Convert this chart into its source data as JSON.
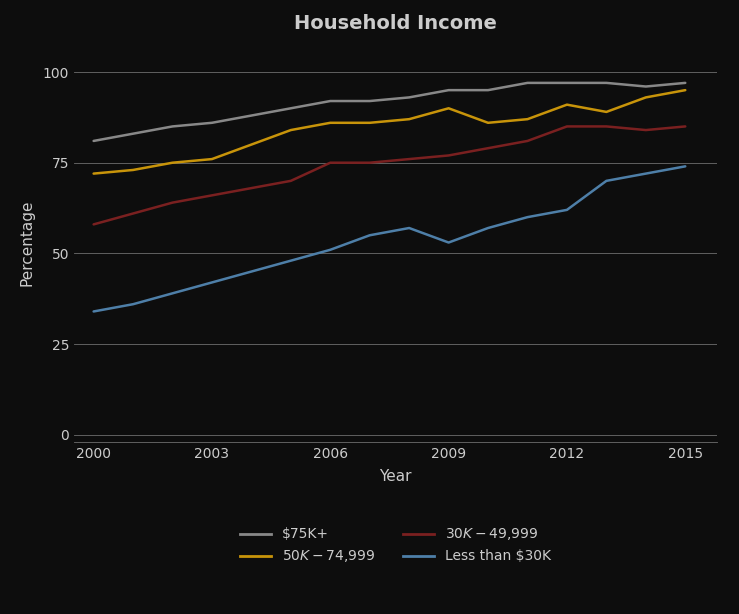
{
  "title": "Household Income",
  "xlabel": "Year",
  "ylabel": "Percentage",
  "background_color": "#0d0d0d",
  "plot_bg_color": "#0d0d0d",
  "text_color": "#cccccc",
  "grid_color": "#cccccc",
  "years": [
    2000,
    2001,
    2002,
    2003,
    2004,
    2005,
    2006,
    2007,
    2008,
    2009,
    2010,
    2011,
    2012,
    2013,
    2014,
    2015
  ],
  "series": [
    {
      "label": "$75K+",
      "color": "#888888",
      "data": [
        81,
        83,
        85,
        86,
        88,
        90,
        92,
        92,
        93,
        95,
        95,
        97,
        97,
        97,
        96,
        97
      ]
    },
    {
      "label": "$50K - $74,999",
      "color": "#c8940a",
      "data": [
        72,
        73,
        75,
        76,
        80,
        84,
        86,
        86,
        87,
        90,
        86,
        87,
        91,
        89,
        93,
        95
      ]
    },
    {
      "label": "$30K - $49,999",
      "color": "#7a2020",
      "data": [
        58,
        61,
        64,
        66,
        68,
        70,
        75,
        75,
        76,
        77,
        79,
        81,
        85,
        85,
        84,
        85
      ]
    },
    {
      "label": "Less than $30K",
      "color": "#4e7fa8",
      "data": [
        34,
        36,
        39,
        42,
        45,
        48,
        51,
        55,
        57,
        53,
        57,
        60,
        62,
        70,
        72,
        74
      ]
    }
  ],
  "yticks": [
    0,
    25,
    50,
    75,
    100
  ],
  "xticks": [
    2000,
    2003,
    2006,
    2009,
    2012,
    2015
  ],
  "ylim": [
    -2,
    108
  ],
  "xlim": [
    1999.5,
    2015.8
  ],
  "legend_cols": 2,
  "title_fontsize": 14,
  "axis_label_fontsize": 11,
  "tick_fontsize": 10
}
